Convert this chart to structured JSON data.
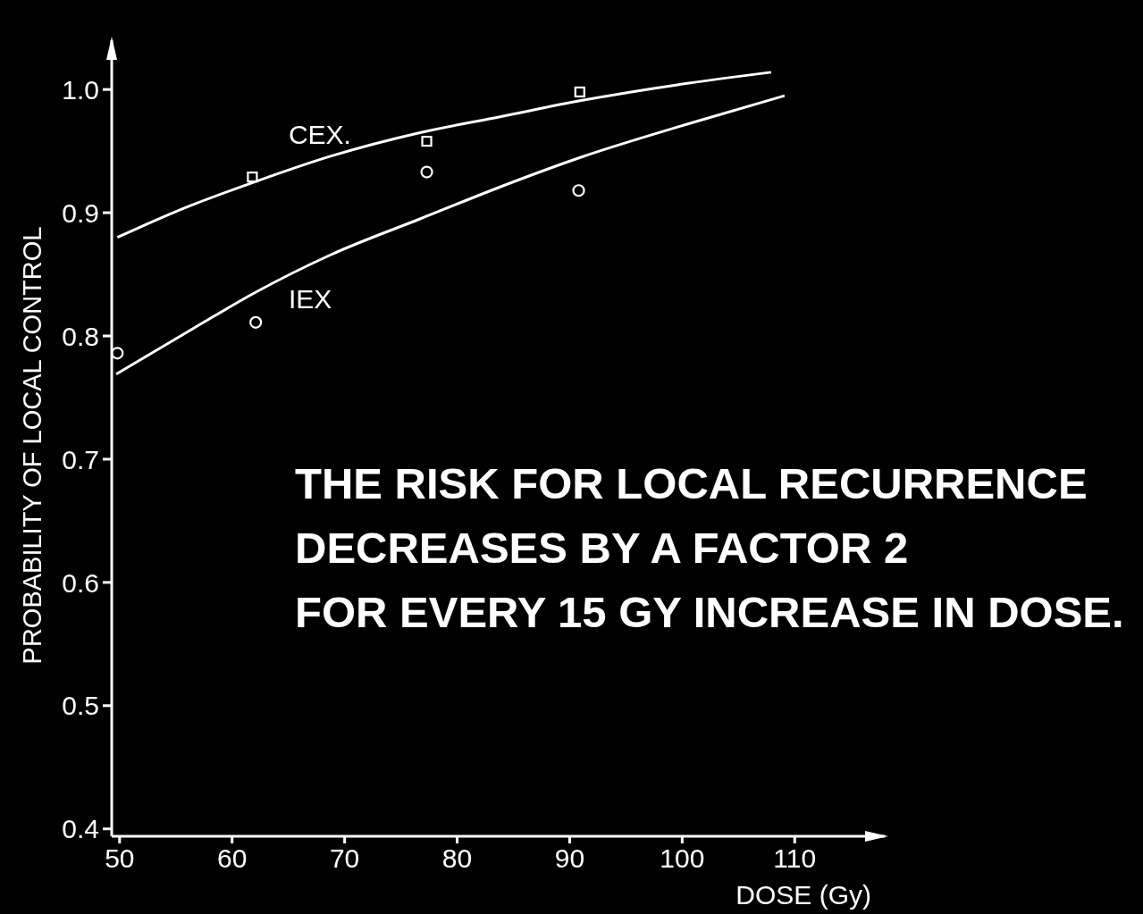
{
  "chart_data": {
    "type": "line",
    "ylabel": "PROBABILITY OF LOCAL CONTROL",
    "xlabel": "DOSE (Gy)",
    "annotations": [
      "THE RISK FOR LOCAL RECURRENCE\nDECREASES BY A FACTOR 2\nFOR EVERY 15 GY INCREASE IN DOSE."
    ],
    "xlim": [
      49.3,
      118
    ],
    "xticks": [
      50,
      60,
      70,
      80,
      90,
      100,
      110
    ],
    "ylim": [
      0.394,
      1.04
    ],
    "yticks": [
      {
        "value": 1,
        "label": "1.0"
      },
      0.9,
      0.8,
      0.7,
      0.6,
      0.5,
      0.4
    ],
    "series": [
      {
        "name": "CEX.",
        "type": "line",
        "marker": "none",
        "color": "#ffffff",
        "x": [
          49.8,
          56.1,
          62.0,
          68.8,
          76.7,
          83.9,
          91.0,
          99.7,
          107.9
        ],
        "values": [
          0.88,
          0.905,
          0.925,
          0.946,
          0.965,
          0.978,
          0.991,
          1.004,
          1.014
        ]
      },
      {
        "type": "scatter",
        "marker": "square",
        "color": "#ffffff",
        "x": [
          61.8,
          77.3,
          90.9
        ],
        "values": [
          0.929,
          0.958,
          0.998
        ]
      },
      {
        "name": "IEX",
        "type": "line",
        "marker": "none",
        "color": "#ffffff",
        "x": [
          49.7,
          56.9,
          62.0,
          68.8,
          76.7,
          84.7,
          91.0,
          100.5,
          109.1
        ],
        "values": [
          0.769,
          0.808,
          0.835,
          0.866,
          0.895,
          0.924,
          0.945,
          0.972,
          0.995
        ]
      },
      {
        "type": "scatter",
        "marker": "circle",
        "color": "#ffffff",
        "x": [
          49.8,
          62.1,
          77.3,
          90.8
        ],
        "values": [
          0.786,
          0.811,
          0.933,
          0.918
        ]
      }
    ]
  }
}
